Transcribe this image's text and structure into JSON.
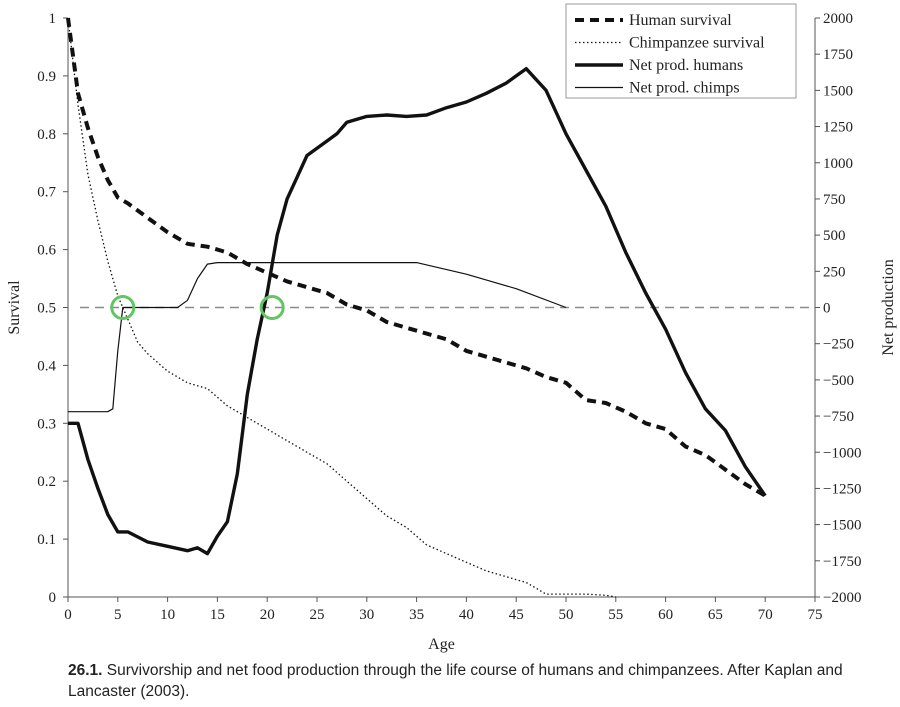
{
  "chart_data": {
    "type": "line",
    "xlabel": "Age",
    "ylabel_left": "Survival",
    "ylabel_right": "Net production",
    "xlim": [
      0,
      75
    ],
    "ylim_left": [
      0,
      1
    ],
    "ylim_right": [
      -2000,
      2000
    ],
    "x_ticks": [
      0,
      5,
      10,
      15,
      20,
      25,
      30,
      35,
      40,
      45,
      50,
      55,
      60,
      65,
      70,
      75
    ],
    "y_left_ticks": [
      0,
      0.1,
      0.2,
      0.3,
      0.4,
      0.5,
      0.6,
      0.7,
      0.8,
      0.9,
      1
    ],
    "y_right_ticks": [
      -2000,
      -1750,
      -1500,
      -1250,
      -1000,
      -750,
      -500,
      -250,
      0,
      250,
      500,
      750,
      1000,
      1250,
      1500,
      1750,
      2000
    ],
    "grid": false,
    "legend_position": "top-right",
    "zero_reference_line": 0,
    "highlight_points": [
      {
        "x": 5.5,
        "y_right": 0
      },
      {
        "x": 20.5,
        "y_right": 0
      }
    ],
    "series": [
      {
        "name": "Human survival",
        "axis": "left",
        "style": "heavy-dashed",
        "x": [
          0,
          1,
          2,
          3,
          4,
          5,
          6,
          8,
          10,
          12,
          14,
          16,
          18,
          20,
          22,
          24,
          26,
          28,
          30,
          32,
          34,
          36,
          38,
          40,
          42,
          44,
          46,
          48,
          50,
          52,
          54,
          56,
          58,
          60,
          62,
          64,
          66,
          68,
          70
        ],
        "y": [
          1.0,
          0.87,
          0.81,
          0.76,
          0.72,
          0.69,
          0.68,
          0.655,
          0.63,
          0.61,
          0.605,
          0.595,
          0.575,
          0.56,
          0.545,
          0.535,
          0.525,
          0.505,
          0.495,
          0.475,
          0.465,
          0.455,
          0.445,
          0.425,
          0.415,
          0.405,
          0.395,
          0.38,
          0.37,
          0.34,
          0.335,
          0.32,
          0.3,
          0.29,
          0.26,
          0.245,
          0.22,
          0.195,
          0.175
        ]
      },
      {
        "name": "Chimpanzee survival",
        "axis": "left",
        "style": "fine-dotted",
        "x": [
          0,
          1,
          2,
          3,
          4,
          5,
          6,
          7,
          8,
          10,
          12,
          14,
          16,
          18,
          20,
          22,
          24,
          26,
          28,
          30,
          32,
          34,
          36,
          38,
          40,
          42,
          44,
          46,
          48,
          50,
          52,
          54,
          55
        ],
        "y": [
          1.0,
          0.85,
          0.73,
          0.65,
          0.58,
          0.52,
          0.48,
          0.44,
          0.42,
          0.39,
          0.37,
          0.36,
          0.33,
          0.31,
          0.29,
          0.27,
          0.25,
          0.23,
          0.2,
          0.17,
          0.14,
          0.12,
          0.09,
          0.075,
          0.06,
          0.045,
          0.035,
          0.025,
          0.005,
          0.005,
          0.005,
          0.003,
          0.0
        ]
      },
      {
        "name": "Net prod. humans",
        "axis": "right",
        "style": "thick-solid",
        "x": [
          0,
          1,
          2,
          3,
          4,
          5,
          6,
          8,
          10,
          12,
          13,
          14,
          15,
          16,
          17,
          18,
          19,
          20,
          21,
          22,
          23,
          24,
          25,
          26,
          27,
          28,
          30,
          32,
          34,
          36,
          38,
          40,
          42,
          44,
          45,
          46,
          48,
          50,
          52,
          54,
          56,
          58,
          60,
          62,
          64,
          66,
          68,
          70
        ],
        "y": [
          -800,
          -800,
          -1050,
          -1250,
          -1430,
          -1550,
          -1550,
          -1620,
          -1650,
          -1680,
          -1660,
          -1700,
          -1580,
          -1480,
          -1150,
          -600,
          -220,
          100,
          500,
          750,
          900,
          1050,
          1100,
          1150,
          1200,
          1280,
          1320,
          1330,
          1320,
          1330,
          1380,
          1420,
          1480,
          1550,
          1600,
          1650,
          1500,
          1200,
          950,
          700,
          380,
          100,
          -150,
          -450,
          -700,
          -850,
          -1100,
          -1300
        ]
      },
      {
        "name": "Net prod. chimps",
        "axis": "right",
        "style": "thin-solid",
        "x": [
          0,
          4,
          4.5,
          5,
          5.5,
          11,
          12,
          13,
          14,
          15,
          20,
          25,
          30,
          35,
          40,
          45,
          50
        ],
        "y": [
          -720,
          -720,
          -700,
          -300,
          0,
          0,
          50,
          200,
          300,
          310,
          310,
          310,
          310,
          310,
          230,
          130,
          0
        ]
      }
    ]
  },
  "caption": {
    "number": "26.1.",
    "text": " Survivorship and net food production through the life course of humans and chimpanzees. After Kaplan and Lancaster (2003)."
  },
  "colors": {
    "lines": "#111111",
    "zero_line": "#8a8a8a",
    "highlight_circle": "#62c462"
  }
}
